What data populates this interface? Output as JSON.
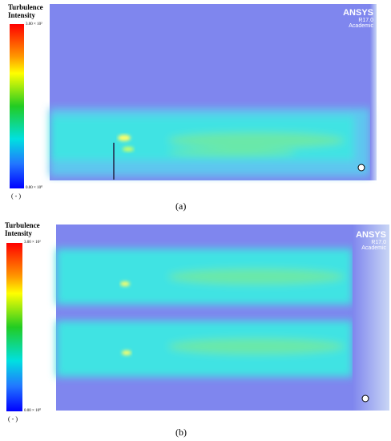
{
  "figures": [
    {
      "label": "(a)",
      "legend": {
        "title": "Turbulence Intensity",
        "max": "3.00 × 10²",
        "min": "0.00 × 10⁰",
        "unit": "( - )"
      },
      "logo": {
        "name": "ANSYS",
        "version": "R17.0",
        "license": "Academic"
      }
    },
    {
      "label": "(b)",
      "legend": {
        "title": "Turbulence Intensity",
        "max": "3.00 × 10²",
        "min": "0.00 × 10⁰",
        "unit": "( - )"
      },
      "logo": {
        "name": "ANSYS",
        "version": "R17.0",
        "license": "Academic"
      }
    }
  ]
}
